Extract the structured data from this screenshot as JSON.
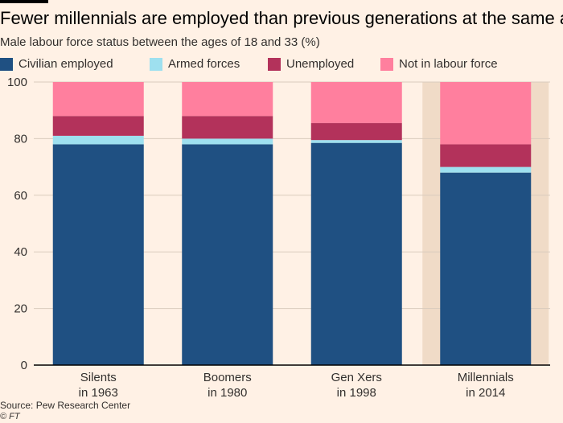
{
  "chart_data": {
    "type": "bar",
    "stacked": true,
    "title": "Fewer millennials are employed than previous generations at the same age",
    "subtitle": "Male labour force status between the ages of 18 and 33 (%)",
    "categories": [
      [
        "Silents",
        "in 1963"
      ],
      [
        "Boomers",
        "in 1980"
      ],
      [
        "Gen Xers",
        "in 1998"
      ],
      [
        "Millennials",
        "in 2014"
      ]
    ],
    "series": [
      {
        "name": "Civilian employed",
        "color": "#1f5082",
        "values": [
          78,
          78,
          78.5,
          68
        ]
      },
      {
        "name": "Armed forces",
        "color": "#9ee0ef",
        "values": [
          3,
          2,
          1,
          2
        ]
      },
      {
        "name": "Unemployed",
        "color": "#b3325b",
        "values": [
          7,
          8,
          6,
          8
        ]
      },
      {
        "name": "Not in labour force",
        "color": "#ff7f9e",
        "values": [
          12,
          12,
          14.5,
          22
        ]
      }
    ],
    "ylim": [
      0,
      100
    ],
    "yticks": [
      0,
      20,
      40,
      60,
      80,
      100
    ],
    "highlight_category": 3,
    "highlight_color": "#f0dbc7",
    "grid": true,
    "legend_position": "top"
  },
  "source": "Source: Pew Research Center",
  "credit": "© FT"
}
